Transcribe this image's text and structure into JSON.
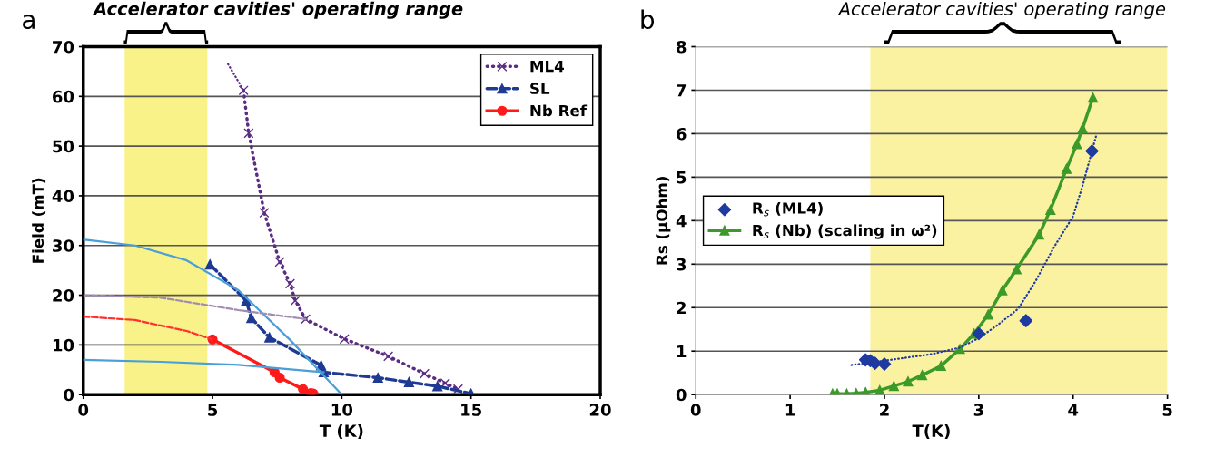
{
  "chart_data": [
    {
      "type": "line",
      "title": "a",
      "xlabel": "T (K)",
      "ylabel": "Field (mT)",
      "xlim": [
        0,
        20
      ],
      "ylim": [
        0,
        70
      ],
      "xticks": [
        0,
        5,
        10,
        15,
        20
      ],
      "yticks": [
        0,
        10,
        20,
        30,
        40,
        50,
        60,
        70
      ],
      "grid": "y",
      "legend": "top right",
      "bands": [
        {
          "axis": "x",
          "from": 1.6,
          "to": 4.8,
          "color": "#f7ef6a"
        }
      ],
      "annotations": [
        "Accelerator cavities' operating range"
      ],
      "series": [
        {
          "name": "ML4",
          "color": "#5b2c83",
          "marker": "cross",
          "line_style": "dotted",
          "x": [
            6.2,
            6.4,
            7.0,
            7.6,
            8.0,
            8.2,
            8.6,
            10.1,
            11.8,
            13.2,
            14.0,
            14.5
          ],
          "values": [
            61.2,
            52.6,
            36.6,
            26.7,
            22.3,
            18.9,
            15.2,
            11.2,
            7.7,
            4.2,
            2.3,
            1.1
          ]
        },
        {
          "name": "SL",
          "color": "#1f3a93",
          "marker": "triangle",
          "line_style": "dashed",
          "x": [
            4.9,
            6.3,
            6.5,
            7.2,
            9.2,
            9.3,
            11.4,
            12.6,
            13.7,
            15.0
          ],
          "values": [
            26.2,
            18.9,
            15.4,
            11.5,
            5.9,
            4.5,
            3.4,
            2.5,
            1.7,
            0.2
          ]
        },
        {
          "name": "Nb Ref",
          "color": "#ff1a1a",
          "marker": "circle",
          "line_style": "solid",
          "x": [
            5.0,
            7.4,
            7.6,
            8.5,
            8.8,
            8.9
          ],
          "values": [
            11.1,
            4.5,
            3.4,
            1.1,
            0.3,
            0.2
          ]
        },
        {
          "color": "#5b2c83",
          "marker": "none",
          "line_style": "dotted",
          "x": [
            5.6,
            6.2
          ],
          "values": [
            66.5,
            61.2
          ]
        },
        {
          "color": "#4a9fd8",
          "marker": "none",
          "line_style": "solid",
          "x": [
            0,
            2,
            4,
            6,
            8,
            10
          ],
          "values": [
            31.2,
            30,
            27,
            21,
            11,
            0
          ]
        },
        {
          "color": "#a08cb0",
          "marker": "none",
          "line_style": "dashed",
          "x": [
            0,
            3,
            6,
            8.6
          ],
          "values": [
            20,
            19.5,
            17,
            15.2
          ]
        },
        {
          "color": "#ff3030",
          "marker": "none",
          "line_style": "dashed",
          "x": [
            0,
            2,
            4,
            5.0
          ],
          "values": [
            15.7,
            15,
            12.8,
            11.1
          ]
        },
        {
          "color": "#4a9fd8",
          "marker": "none",
          "line_style": "solid",
          "x": [
            0,
            3,
            6,
            9.3
          ],
          "values": [
            7,
            6.6,
            6,
            4.5
          ]
        }
      ]
    },
    {
      "type": "line",
      "title": "b",
      "xlabel": "T(K)",
      "ylabel": "Rs (µOhm)",
      "xlim": [
        0,
        5
      ],
      "ylim": [
        0,
        8
      ],
      "xticks": [
        0,
        1,
        2,
        3,
        4,
        5
      ],
      "yticks": [
        0,
        1,
        2,
        3,
        4,
        5,
        6,
        7,
        8
      ],
      "grid": "y",
      "legend": "left",
      "bands": [
        {
          "axis": "x",
          "from": 1.85,
          "to": 5,
          "color": "#f9ef8a"
        }
      ],
      "annotations": [
        "Accelerator cavities' operating range"
      ],
      "series": [
        {
          "name": "R$_{s}$ (ML4)",
          "type": "scatter",
          "color": "#1f3aa0",
          "marker": "diamond",
          "x": [
            1.8,
            1.85,
            1.9,
            2.0,
            3.0,
            3.5,
            4.2
          ],
          "values": [
            0.8,
            0.78,
            0.72,
            0.7,
            1.4,
            1.7,
            5.6
          ]
        },
        {
          "name": "R$_{s}$ (Nb) (scaling in ω²)",
          "color": "#3c9a2a",
          "marker": "triangle",
          "line_style": "solid",
          "x": [
            1.45,
            1.5,
            1.6,
            1.7,
            1.8,
            1.95,
            2.1,
            2.25,
            2.4,
            2.6,
            2.8,
            2.95,
            3.1,
            3.25,
            3.4,
            3.64,
            3.76,
            3.93,
            4.04,
            4.1,
            4.21
          ],
          "values": [
            0.02,
            0.02,
            0.02,
            0.03,
            0.05,
            0.1,
            0.2,
            0.3,
            0.45,
            0.66,
            1.05,
            1.4,
            1.84,
            2.4,
            2.88,
            3.68,
            4.25,
            5.19,
            5.76,
            6.12,
            6.83
          ]
        },
        {
          "color": "#1f3aa0",
          "marker": "none",
          "line_style": "dotted",
          "x": [
            1.65,
            2.0,
            2.5,
            2.8,
            3.0,
            3.2,
            3.42,
            3.6,
            3.8,
            4.0,
            4.1,
            4.25
          ],
          "values": [
            0.68,
            0.78,
            0.93,
            1.08,
            1.3,
            1.6,
            1.98,
            2.6,
            3.4,
            4.1,
            4.8,
            6.0
          ]
        }
      ]
    }
  ]
}
